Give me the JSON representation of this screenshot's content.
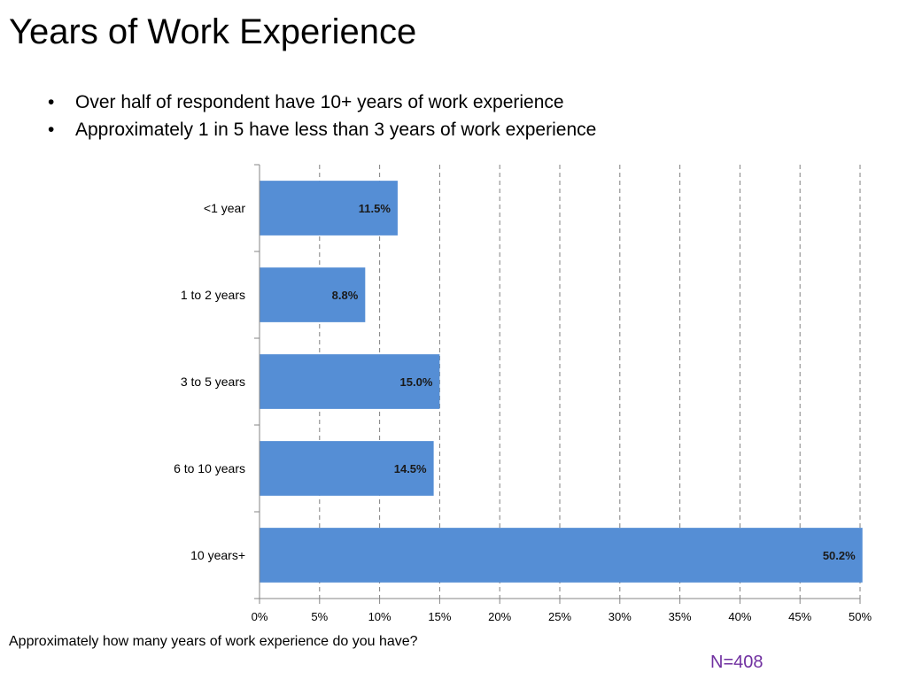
{
  "slide": {
    "title": "Years of Work Experience",
    "bullets": [
      "Over half of respondent have 10+ years of work experience",
      "Approximately 1 in 5 have less than 3 years of work experience"
    ],
    "question": "Approximately how many years of work experience do you have?",
    "sample_size": "N=408"
  },
  "chart_data": {
    "type": "bar",
    "orientation": "horizontal",
    "categories": [
      "<1 year",
      "1 to 2 years",
      "3 to 5 years",
      "6 to 10 years",
      "10 years+"
    ],
    "values": [
      11.5,
      8.8,
      15.0,
      14.5,
      50.2
    ],
    "data_labels": [
      "11.5%",
      "8.8%",
      "15.0%",
      "14.5%",
      "50.2%"
    ],
    "x_ticks": [
      "0%",
      "5%",
      "10%",
      "15%",
      "20%",
      "25%",
      "30%",
      "35%",
      "40%",
      "45%",
      "50%"
    ],
    "xlim": [
      0,
      50
    ],
    "grid": "vertical dashed",
    "bar_color": "#558ED5",
    "title": "",
    "xlabel": "",
    "ylabel": ""
  }
}
